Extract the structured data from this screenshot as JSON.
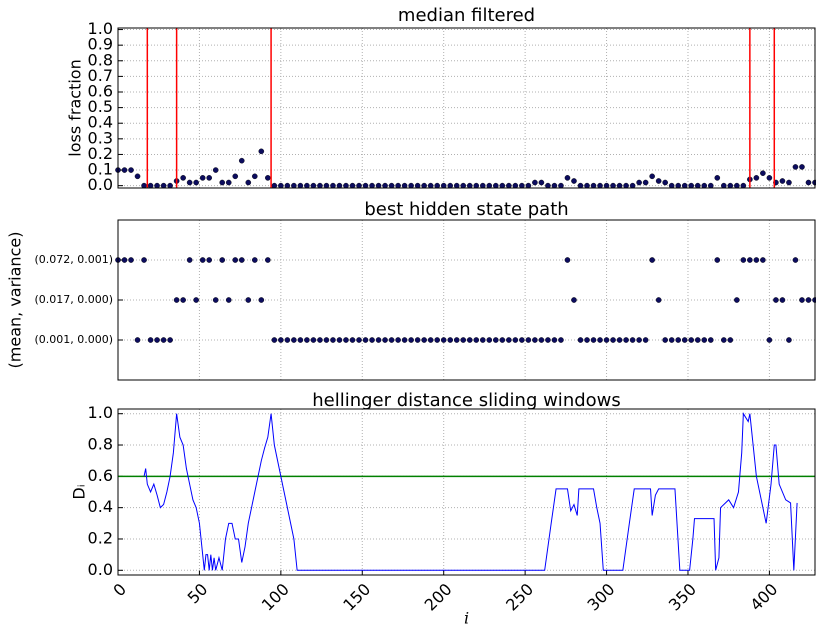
{
  "chart_data": [
    {
      "type": "scatter",
      "title": "median filtered",
      "y_label": "loss fraction",
      "color": "#0c0c5e",
      "grid": true,
      "xlim": [
        0,
        428
      ],
      "ylim": [
        -0.015,
        1.01
      ],
      "yticks": [
        {
          "value": 0,
          "label": "0.0"
        },
        0.1,
        0.2,
        0.3,
        0.4,
        0.5,
        0.6,
        0.7,
        0.8,
        0.9,
        {
          "value": 1,
          "label": "1.0"
        }
      ],
      "vlines": [
        18,
        36,
        94,
        388,
        403
      ],
      "vline_color": "#ff0000",
      "x": [
        0,
        4,
        8,
        12,
        16,
        20,
        24,
        28,
        32,
        36,
        40,
        44,
        48,
        52,
        56,
        60,
        64,
        68,
        72,
        76,
        80,
        84,
        88,
        92,
        96,
        100,
        104,
        108,
        112,
        116,
        120,
        124,
        128,
        132,
        136,
        140,
        144,
        148,
        152,
        156,
        160,
        164,
        168,
        172,
        176,
        180,
        184,
        188,
        192,
        196,
        200,
        204,
        208,
        212,
        216,
        220,
        224,
        228,
        232,
        236,
        240,
        244,
        248,
        252,
        256,
        260,
        264,
        268,
        272,
        276,
        280,
        284,
        288,
        292,
        296,
        300,
        304,
        308,
        312,
        316,
        320,
        324,
        328,
        332,
        336,
        340,
        344,
        348,
        352,
        356,
        360,
        364,
        368,
        372,
        376,
        380,
        384,
        388,
        392,
        396,
        400,
        404,
        408,
        412,
        416,
        420,
        424,
        428
      ],
      "values": [
        0.1,
        0.1,
        0.1,
        0.06,
        0,
        0,
        0,
        0,
        0,
        0.03,
        0.05,
        0.02,
        0.02,
        0.05,
        0.05,
        0.1,
        0.02,
        0.02,
        0.06,
        0.16,
        0.02,
        0.06,
        0.22,
        0.05,
        0,
        0,
        0,
        0,
        0,
        0,
        0,
        0,
        0,
        0,
        0,
        0,
        0,
        0,
        0,
        0,
        0,
        0,
        0,
        0,
        0,
        0,
        0,
        0,
        0,
        0,
        0,
        0,
        0,
        0,
        0,
        0,
        0,
        0,
        0,
        0,
        0,
        0,
        0,
        0,
        0.02,
        0.02,
        0,
        0,
        0,
        0.05,
        0.03,
        0,
        0,
        0,
        0,
        0,
        0,
        0,
        0,
        0,
        0.02,
        0.02,
        0.06,
        0.03,
        0.02,
        0,
        0,
        0,
        0,
        0,
        0,
        0,
        0.05,
        0,
        0,
        0,
        0,
        0.04,
        0.05,
        0.08,
        0.05,
        0.02,
        0.03,
        0.02,
        0.12,
        0.12,
        0.02,
        0.02
      ]
    },
    {
      "type": "scatter",
      "title": "best hidden state path",
      "y_label": "(mean, variance)",
      "color": "#0c0c5e",
      "grid": true,
      "xlim": [
        0,
        428
      ],
      "ylim": [
        -1,
        3
      ],
      "yticks": [
        {
          "value": 0,
          "label": "(0.001, 0.000)"
        },
        {
          "value": 1,
          "label": "(0.017, 0.000)"
        },
        {
          "value": 2,
          "label": "(0.072, 0.001)"
        }
      ],
      "x": [
        0,
        4,
        8,
        12,
        16,
        20,
        24,
        28,
        32,
        36,
        40,
        44,
        48,
        52,
        56,
        60,
        64,
        68,
        72,
        76,
        80,
        84,
        88,
        92,
        96,
        100,
        104,
        108,
        112,
        116,
        120,
        124,
        128,
        132,
        136,
        140,
        144,
        148,
        152,
        156,
        160,
        164,
        168,
        172,
        176,
        180,
        184,
        188,
        192,
        196,
        200,
        204,
        208,
        212,
        216,
        220,
        224,
        228,
        232,
        236,
        240,
        244,
        248,
        252,
        256,
        260,
        264,
        268,
        272,
        276,
        280,
        284,
        288,
        292,
        296,
        300,
        304,
        308,
        312,
        316,
        320,
        324,
        328,
        332,
        336,
        340,
        344,
        348,
        352,
        356,
        360,
        364,
        368,
        372,
        376,
        380,
        384,
        388,
        392,
        396,
        400,
        404,
        408,
        412,
        416,
        420,
        424,
        428
      ],
      "values": [
        2,
        2,
        2,
        0,
        2,
        0,
        0,
        0,
        0,
        1,
        1,
        2,
        1,
        2,
        2,
        1,
        2,
        1,
        2,
        2,
        1,
        2,
        1,
        2,
        0,
        0,
        0,
        0,
        0,
        0,
        0,
        0,
        0,
        0,
        0,
        0,
        0,
        0,
        0,
        0,
        0,
        0,
        0,
        0,
        0,
        0,
        0,
        0,
        0,
        0,
        0,
        0,
        0,
        0,
        0,
        0,
        0,
        0,
        0,
        0,
        0,
        0,
        0,
        0,
        0,
        0,
        0,
        0,
        0,
        2,
        1,
        0,
        0,
        0,
        0,
        0,
        0,
        0,
        0,
        0,
        0,
        0,
        2,
        1,
        0,
        0,
        0,
        0,
        0,
        0,
        0,
        0,
        2,
        0,
        0,
        1,
        2,
        2,
        2,
        2,
        0,
        1,
        1,
        0,
        2,
        1,
        1,
        1
      ]
    },
    {
      "type": "line",
      "title": "hellinger distance sliding windows",
      "y_label": "Dᵢ",
      "x_label": "i",
      "color": "#0000ff",
      "grid": true,
      "xlim": [
        0,
        428
      ],
      "ylim": [
        -0.03,
        1.03
      ],
      "xticks": [
        0,
        50,
        100,
        150,
        200,
        250,
        300,
        350,
        400
      ],
      "yticks": [
        {
          "value": 0,
          "label": "0.0"
        },
        0.2,
        0.4,
        0.6,
        0.8,
        {
          "value": 1,
          "label": "1.0"
        }
      ],
      "hline": 0.6,
      "hline_color": "#008000",
      "x": [
        16,
        17,
        18,
        20,
        22,
        24,
        26,
        28,
        30,
        32,
        34,
        36,
        38,
        40,
        42,
        44,
        46,
        48,
        50,
        52,
        53,
        54,
        55,
        56,
        57,
        58,
        59,
        60,
        62,
        64,
        66,
        68,
        70,
        72,
        74,
        76,
        78,
        80,
        84,
        88,
        90,
        92,
        94,
        96,
        100,
        104,
        108,
        110,
        262,
        266,
        269,
        276,
        278,
        280,
        282,
        283,
        292,
        294,
        296,
        298,
        310,
        314,
        317,
        327,
        328,
        330,
        332,
        342,
        345,
        351,
        353,
        354,
        366,
        367,
        369,
        370,
        375,
        378,
        381,
        383,
        384,
        387,
        388,
        390,
        392,
        396,
        398,
        401,
        403,
        404,
        406,
        410,
        413,
        415,
        417
      ],
      "values": [
        0.6,
        0.65,
        0.55,
        0.5,
        0.55,
        0.48,
        0.4,
        0.42,
        0.5,
        0.6,
        0.75,
        1.0,
        0.85,
        0.8,
        0.65,
        0.55,
        0.45,
        0.4,
        0.3,
        0.1,
        0,
        0.1,
        0.1,
        0,
        0.1,
        0,
        0.08,
        0,
        0.08,
        0,
        0.2,
        0.3,
        0.3,
        0.2,
        0.2,
        0.05,
        0.15,
        0.3,
        0.5,
        0.7,
        0.78,
        0.85,
        1.0,
        0.8,
        0.6,
        0.4,
        0.2,
        0,
        0,
        0.3,
        0.52,
        0.52,
        0.38,
        0.42,
        0.35,
        0.52,
        0.52,
        0.4,
        0.3,
        0,
        0,
        0.3,
        0.52,
        0.52,
        0.35,
        0.48,
        0.52,
        0.52,
        0,
        0,
        0.2,
        0.33,
        0.33,
        0,
        0.08,
        0.4,
        0.45,
        0.4,
        0.5,
        0.75,
        1.0,
        0.95,
        1.0,
        0.8,
        0.6,
        0.4,
        0.3,
        0.55,
        0.8,
        0.8,
        0.55,
        0.45,
        0.43,
        0,
        0.43
      ]
    }
  ]
}
